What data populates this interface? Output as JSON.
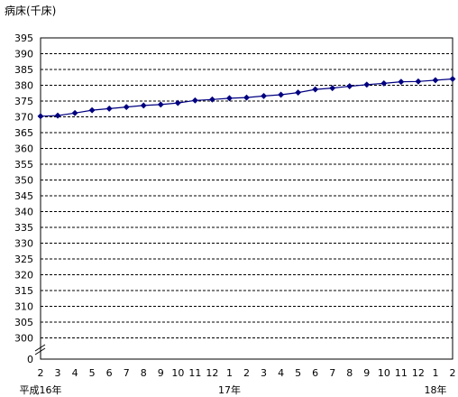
{
  "chart_data": {
    "type": "line",
    "title": "病床(千床)",
    "xlabel": "",
    "ylabel": "病床(千床)",
    "y_ticks": [
      "395",
      "390",
      "385",
      "380",
      "375",
      "370",
      "365",
      "360",
      "355",
      "350",
      "345",
      "340",
      "335",
      "330",
      "325",
      "320",
      "315",
      "310",
      "305",
      "300",
      "0"
    ],
    "ylim": [
      300,
      395
    ],
    "axis_break": true,
    "grid": "horizontal-dashed",
    "x_tick_labels": [
      "2",
      "3",
      "4",
      "5",
      "6",
      "7",
      "8",
      "9",
      "10",
      "11",
      "12",
      "1",
      "2",
      "3",
      "4",
      "5",
      "6",
      "7",
      "8",
      "9",
      "10",
      "11",
      "12",
      "1",
      "2"
    ],
    "year_labels": [
      {
        "index": 0,
        "label": "平成16年"
      },
      {
        "index": 11,
        "label": "17年"
      },
      {
        "index": 23,
        "label": "18年"
      }
    ],
    "series": [
      {
        "color": "#000080",
        "marker": "diamond",
        "values": [
          370.2,
          370.4,
          371.2,
          372.1,
          372.6,
          373.1,
          373.6,
          373.9,
          374.4,
          375.2,
          375.5,
          375.9,
          376.1,
          376.6,
          377.0,
          377.7,
          378.7,
          379.1,
          379.7,
          380.2,
          380.6,
          381.1,
          381.2,
          381.6,
          382.0
        ]
      }
    ]
  }
}
